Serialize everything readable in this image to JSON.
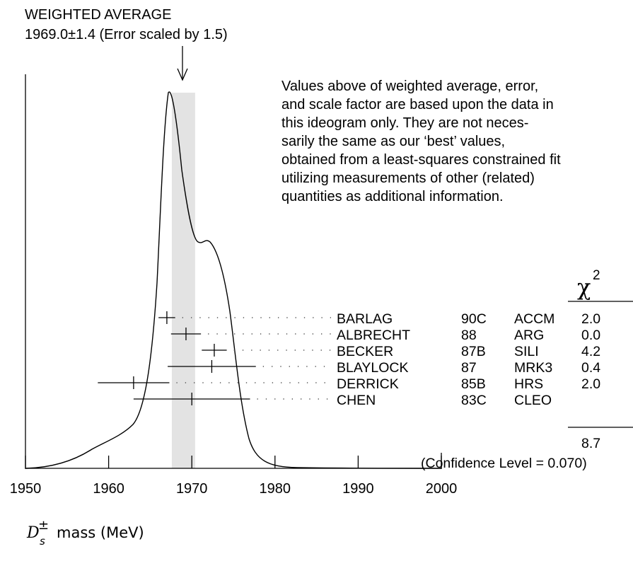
{
  "chart_data": {
    "type": "ideogram",
    "title": "WEIGHTED AVERAGE",
    "subtitle": "1969.0±1.4 (Error scaled by 1.5)",
    "weighted_average": {
      "value": 1969.0,
      "error": 1.4,
      "scale_factor": 1.5
    },
    "note_lines": [
      "Values above of weighted average, error,",
      "and scale factor are based upon the data in",
      "this ideogram only.  They are not neces-",
      "sarily the same as our ‘best’ values,",
      "obtained from a least-squares constrained fit",
      "utilizing measurements of other (related)",
      "quantities as additional information."
    ],
    "xlim": [
      1950,
      2000
    ],
    "x_ticks": [
      "1950",
      "1960",
      "1970",
      "1980",
      "1990",
      "2000"
    ],
    "xlabel": {
      "symbol": "D",
      "superscript": "±",
      "subscript": "s",
      "text": "mass (MeV)"
    },
    "chi2_header": {
      "symbol": "χ",
      "superscript": "2"
    },
    "measurements": [
      {
        "author": "BARLAG",
        "year": "90C",
        "experiment": "ACCM",
        "chi2": "2.0",
        "value": 1967.0,
        "error": 1.0
      },
      {
        "author": "ALBRECHT",
        "year": "88",
        "experiment": "ARG",
        "chi2": "0.0",
        "value": 1969.3,
        "error": 1.8
      },
      {
        "author": "BECKER",
        "year": "87B",
        "experiment": "SILI",
        "chi2": "4.2",
        "value": 1972.7,
        "error": 1.5
      },
      {
        "author": "BLAYLOCK",
        "year": "87",
        "experiment": "MRK3",
        "chi2": "0.4",
        "value": 1972.4,
        "error": 5.3
      },
      {
        "author": "DERRICK",
        "year": "85B",
        "experiment": "HRS",
        "chi2": "2.0",
        "value": 1963.0,
        "error": 4.3
      },
      {
        "author": "CHEN",
        "year": "83C",
        "experiment": "CLEO",
        "chi2": "",
        "value": 1970.0,
        "error": 7.0
      }
    ],
    "chi2_total": "8.7",
    "confidence_level": "(Confidence Level = 0.070)"
  }
}
